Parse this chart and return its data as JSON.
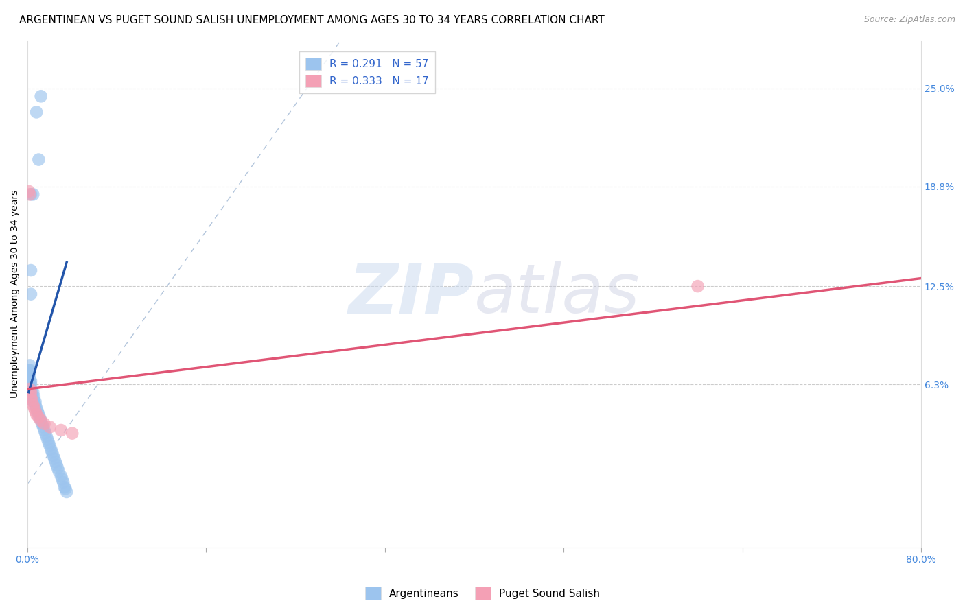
{
  "title": "ARGENTINEAN VS PUGET SOUND SALISH UNEMPLOYMENT AMONG AGES 30 TO 34 YEARS CORRELATION CHART",
  "source": "Source: ZipAtlas.com",
  "ylabel": "Unemployment Among Ages 30 to 34 years",
  "xlim": [
    0.0,
    0.8
  ],
  "ylim": [
    -0.04,
    0.28
  ],
  "ytick_labels_right": [
    "25.0%",
    "18.8%",
    "12.5%",
    "6.3%"
  ],
  "ytick_values_right": [
    0.25,
    0.188,
    0.125,
    0.063
  ],
  "blue_R": "0.291",
  "blue_N": "57",
  "pink_R": "0.333",
  "pink_N": "17",
  "blue_color": "#9CC4EE",
  "pink_color": "#F4A0B5",
  "blue_line_color": "#2255AA",
  "pink_line_color": "#E05575",
  "diagonal_color": "#AABFD8",
  "legend_label_blue": "Argentineans",
  "legend_label_pink": "Puget Sound Salish",
  "blue_scatter_x": [
    0.008,
    0.012,
    0.01,
    0.003,
    0.005,
    0.003,
    0.003,
    0.002,
    0.002,
    0.001,
    0.001,
    0.001,
    0.001,
    0.001,
    0.001,
    0.002,
    0.002,
    0.002,
    0.003,
    0.003,
    0.003,
    0.004,
    0.004,
    0.005,
    0.005,
    0.005,
    0.006,
    0.006,
    0.007,
    0.007,
    0.008,
    0.009,
    0.01,
    0.011,
    0.012,
    0.013,
    0.014,
    0.015,
    0.016,
    0.017,
    0.018,
    0.019,
    0.02,
    0.021,
    0.022,
    0.023,
    0.025,
    0.027,
    0.028,
    0.03,
    0.031,
    0.033,
    0.035,
    0.024,
    0.026,
    0.032,
    0.034
  ],
  "blue_scatter_y": [
    0.235,
    0.245,
    0.205,
    0.183,
    0.183,
    0.135,
    0.12,
    0.075,
    0.072,
    0.072,
    0.07,
    0.068,
    0.065,
    0.062,
    0.06,
    0.068,
    0.065,
    0.062,
    0.065,
    0.063,
    0.06,
    0.058,
    0.055,
    0.058,
    0.055,
    0.052,
    0.055,
    0.052,
    0.052,
    0.05,
    0.048,
    0.046,
    0.044,
    0.042,
    0.04,
    0.038,
    0.036,
    0.034,
    0.032,
    0.03,
    0.028,
    0.026,
    0.024,
    0.022,
    0.02,
    0.018,
    0.014,
    0.01,
    0.008,
    0.005,
    0.003,
    -0.002,
    -0.005,
    0.016,
    0.012,
    0.001,
    -0.003
  ],
  "pink_scatter_x": [
    0.001,
    0.002,
    0.002,
    0.003,
    0.003,
    0.004,
    0.005,
    0.006,
    0.007,
    0.008,
    0.01,
    0.012,
    0.015,
    0.02,
    0.03,
    0.04,
    0.6
  ],
  "pink_scatter_y": [
    0.185,
    0.183,
    0.06,
    0.058,
    0.055,
    0.053,
    0.05,
    0.048,
    0.046,
    0.044,
    0.042,
    0.04,
    0.038,
    0.036,
    0.034,
    0.032,
    0.125
  ],
  "blue_line_x": [
    0.001,
    0.035
  ],
  "blue_line_y": [
    0.058,
    0.14
  ],
  "pink_line_x": [
    0.0,
    0.8
  ],
  "pink_line_y": [
    0.06,
    0.13
  ],
  "diag_line_x": [
    0.0,
    0.28
  ],
  "diag_line_y": [
    0.0,
    0.28
  ],
  "watermark_zip": "ZIP",
  "watermark_atlas": "atlas",
  "title_fontsize": 11,
  "label_fontsize": 10,
  "tick_fontsize": 10,
  "legend_fontsize": 11
}
